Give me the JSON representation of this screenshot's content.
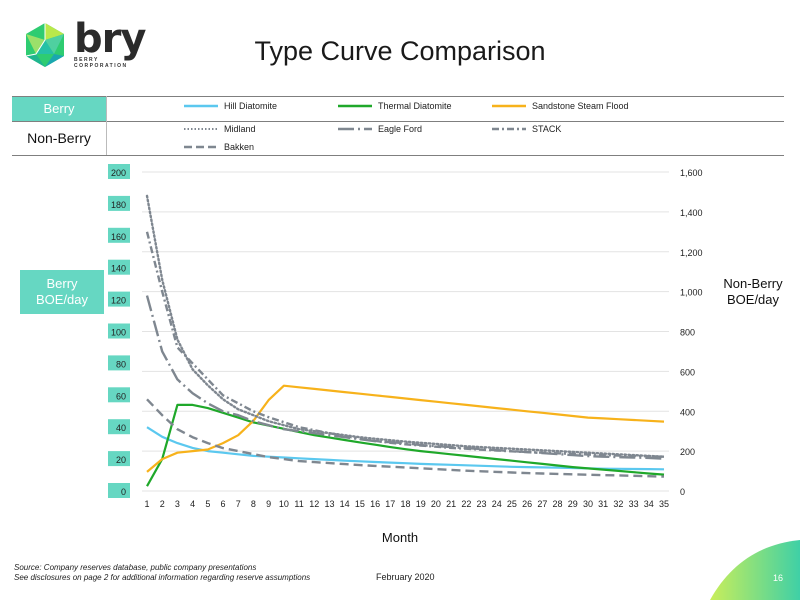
{
  "logo": {
    "word": "bry",
    "sub_line1": "BERRY",
    "sub_line2": "CORPORATION"
  },
  "title": "Type Curve Comparison",
  "legend": {
    "berry_label": "Berry",
    "nonberry_label": "Non-Berry",
    "berry_items": [
      "Hill Diatomite",
      "Thermal Diatomite",
      "Sandstone Steam Flood"
    ],
    "nonberry_items": [
      "Midland",
      "Eagle Ford",
      "STACK",
      "Bakken"
    ]
  },
  "axes": {
    "left_label_line1": "Berry",
    "left_label_line2": "BOE/day",
    "right_label_line1": "Non-Berry",
    "right_label_line2": "BOE/day",
    "x_label": "Month"
  },
  "footer": {
    "source_line1": "Source: Company reserves database, public company presentations",
    "source_line2": "See disclosures on page 2 for additional information regarding reserve assumptions",
    "date": "February 2020",
    "page": "16"
  },
  "colors": {
    "accent": "#66d7c2",
    "hill": "#5bc8ef",
    "thermal": "#1fa82a",
    "sandstone": "#f7b21b",
    "nonberry": "#7f8790"
  },
  "chart_data": {
    "type": "line",
    "x": [
      1,
      2,
      3,
      4,
      5,
      6,
      7,
      8,
      9,
      10,
      11,
      12,
      13,
      14,
      15,
      16,
      17,
      18,
      19,
      20,
      21,
      22,
      23,
      24,
      25,
      26,
      27,
      28,
      29,
      30,
      31,
      32,
      33,
      34,
      35
    ],
    "x_ticks": [
      "1",
      "2",
      "3",
      "4",
      "5",
      "6",
      "7",
      "8",
      "9",
      "10",
      "11",
      "12",
      "13",
      "14",
      "15",
      "16",
      "17",
      "18",
      "19",
      "20",
      "21",
      "22",
      "23",
      "24",
      "25",
      "26",
      "27",
      "28",
      "29",
      "30",
      "31",
      "32",
      "33",
      "34",
      "35"
    ],
    "y_left": {
      "range": [
        0,
        200
      ],
      "ticks": [
        "0",
        "20",
        "40",
        "60",
        "80",
        "100",
        "120",
        "140",
        "160",
        "180",
        "200"
      ]
    },
    "y_right": {
      "range": [
        0,
        1600
      ],
      "ticks": [
        "0",
        "200",
        "400",
        "600",
        "800",
        "1,000",
        "1,200",
        "1,400",
        "1,600"
      ]
    },
    "xlabel": "Month",
    "series": [
      {
        "name": "Hill Diatomite",
        "axis": "left",
        "style": "solid",
        "color": "#5bc8ef",
        "values": [
          40,
          34,
          30,
          27,
          25,
          24,
          23,
          22,
          21.5,
          21,
          20.5,
          20,
          19.5,
          19,
          18.6,
          18.2,
          17.8,
          17.4,
          17,
          16.7,
          16.4,
          16.1,
          15.8,
          15.5,
          15.2,
          15,
          14.8,
          14.6,
          14.4,
          14.2,
          14,
          13.9,
          13.8,
          13.7,
          13.6
        ]
      },
      {
        "name": "Thermal Diatomite",
        "axis": "left",
        "style": "solid",
        "color": "#1fa82a",
        "values": [
          3,
          20,
          54,
          54,
          52,
          49,
          46,
          43,
          41,
          39,
          37,
          35,
          33.5,
          32,
          30.5,
          29,
          27.5,
          26.2,
          25,
          24,
          23,
          22,
          21,
          20,
          19,
          18,
          17,
          16,
          15,
          14.2,
          13.4,
          12.6,
          11.8,
          11,
          10.3
        ]
      },
      {
        "name": "Sandstone Steam Flood",
        "axis": "left",
        "style": "solid",
        "color": "#f7b21b",
        "values": [
          12,
          20,
          24,
          25,
          26,
          30,
          35,
          44,
          57,
          66,
          65,
          64,
          63,
          62,
          61,
          60,
          59,
          58,
          57,
          56,
          55,
          54,
          53,
          52,
          51,
          50,
          49,
          48,
          47,
          46,
          45.5,
          45,
          44.5,
          44,
          43.5
        ]
      },
      {
        "name": "Midland",
        "axis": "right",
        "style": "dot",
        "color": "#7f8790",
        "values": [
          1480,
          1060,
          760,
          610,
          530,
          460,
          410,
          380,
          350,
          330,
          310,
          300,
          290,
          280,
          270,
          262,
          255,
          248,
          242,
          236,
          230,
          224,
          220,
          216,
          212,
          208,
          204,
          200,
          196,
          192,
          188,
          184,
          180,
          176,
          172
        ]
      },
      {
        "name": "Eagle Ford",
        "axis": "right",
        "style": "longdash",
        "color": "#7f8790",
        "values": [
          980,
          700,
          560,
          490,
          440,
          400,
          380,
          350,
          330,
          310,
          300,
          290,
          280,
          270,
          260,
          250,
          245,
          240,
          230,
          225,
          220,
          215,
          210,
          205,
          200,
          195,
          190,
          185,
          180,
          175,
          172,
          170,
          168,
          166,
          162
        ]
      },
      {
        "name": "STACK",
        "axis": "right",
        "style": "dashdot",
        "color": "#7f8790",
        "values": [
          1300,
          1000,
          720,
          640,
          560,
          480,
          440,
          400,
          370,
          345,
          320,
          305,
          290,
          276,
          262,
          252,
          242,
          234,
          228,
          222,
          216,
          212,
          207,
          203,
          199,
          195,
          192,
          189,
          186,
          183,
          180,
          178,
          176,
          174,
          172
        ]
      },
      {
        "name": "Bakken",
        "axis": "right",
        "style": "dash",
        "color": "#7f8790",
        "values": [
          460,
          380,
          310,
          270,
          240,
          215,
          200,
          185,
          170,
          160,
          150,
          145,
          140,
          135,
          130,
          126,
          122,
          118,
          114,
          110,
          106,
          102,
          99,
          96,
          93,
          90,
          88,
          86,
          84,
          82,
          80,
          78,
          76,
          74,
          72
        ]
      }
    ]
  }
}
